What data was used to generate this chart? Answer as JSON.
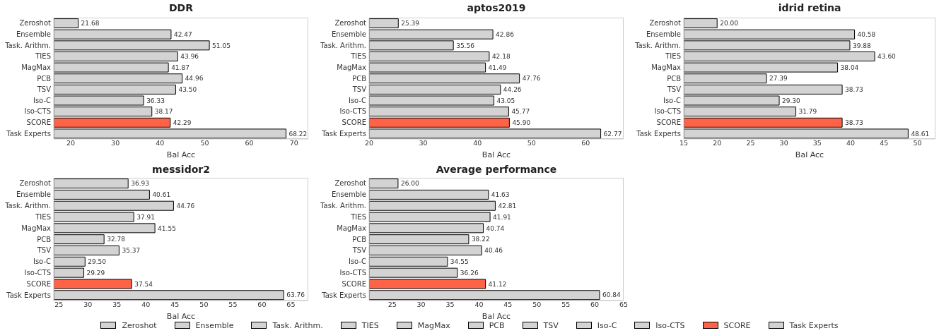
{
  "chart_data": [
    {
      "type": "bar",
      "orientation": "horizontal",
      "stacked": true,
      "title": "DDR",
      "xlabel": "Bal Acc",
      "categories": [
        "Zeroshot",
        "Ensemble",
        "Task. Arithm.",
        "TIES",
        "MagMax",
        "PCB",
        "TSV",
        "Iso-C",
        "Iso-CTS",
        "SCORE",
        "Task Experts"
      ],
      "xlim": [
        16.2,
        73.2
      ],
      "xticks": [
        20,
        30,
        40,
        50,
        60,
        70
      ],
      "series": [
        {
          "color": "#d3d3d3",
          "values": [
            21.68,
            null,
            null,
            null,
            null,
            null,
            null,
            null,
            null,
            null,
            null
          ],
          "value_labels": [
            "21.68",
            null,
            null,
            null,
            null,
            null,
            null,
            null,
            null,
            null,
            null
          ]
        },
        {
          "color": "#d3d3d3",
          "values": [
            null,
            42.47,
            null,
            null,
            null,
            null,
            null,
            null,
            null,
            null,
            null
          ],
          "value_labels": [
            null,
            "42.47",
            null,
            null,
            null,
            null,
            null,
            null,
            null,
            null,
            null
          ]
        },
        {
          "color": "#d3d3d3",
          "values": [
            null,
            null,
            51.05,
            null,
            null,
            null,
            null,
            null,
            null,
            null,
            null
          ],
          "value_labels": [
            null,
            null,
            "51.05",
            null,
            null,
            null,
            null,
            null,
            null,
            null,
            null
          ]
        },
        {
          "color": "#d3d3d3",
          "values": [
            null,
            null,
            null,
            43.96,
            null,
            null,
            null,
            null,
            null,
            null,
            null
          ],
          "value_labels": [
            null,
            null,
            null,
            "43.96",
            null,
            null,
            null,
            null,
            null,
            null,
            null
          ]
        },
        {
          "color": "#d3d3d3",
          "values": [
            null,
            null,
            null,
            null,
            41.87,
            null,
            null,
            null,
            null,
            null,
            null
          ],
          "value_labels": [
            null,
            null,
            null,
            null,
            "41.87",
            null,
            null,
            null,
            null,
            null,
            null
          ]
        },
        {
          "color": "#d3d3d3",
          "values": [
            null,
            null,
            null,
            null,
            null,
            44.96,
            null,
            null,
            null,
            null,
            null
          ],
          "value_labels": [
            null,
            null,
            null,
            null,
            null,
            "44.96",
            null,
            null,
            null,
            null,
            null
          ]
        },
        {
          "color": "#d3d3d3",
          "values": [
            null,
            null,
            null,
            null,
            null,
            null,
            43.5,
            null,
            null,
            null,
            null
          ],
          "value_labels": [
            null,
            null,
            null,
            null,
            null,
            null,
            "43.50",
            null,
            null,
            null,
            null
          ]
        },
        {
          "color": "#d3d3d3",
          "values": [
            null,
            null,
            null,
            null,
            null,
            null,
            null,
            36.33,
            null,
            null,
            null
          ],
          "value_labels": [
            null,
            null,
            null,
            null,
            null,
            null,
            null,
            "36.33",
            null,
            null,
            null
          ]
        },
        {
          "color": "#d3d3d3",
          "values": [
            null,
            null,
            null,
            null,
            null,
            null,
            null,
            null,
            38.17,
            null,
            null
          ],
          "value_labels": [
            null,
            null,
            null,
            null,
            null,
            null,
            null,
            null,
            "38.17",
            null,
            null
          ]
        },
        {
          "color": "#ff6347",
          "values": [
            null,
            null,
            null,
            null,
            null,
            null,
            null,
            null,
            null,
            42.29,
            null
          ],
          "value_labels": [
            null,
            null,
            null,
            null,
            null,
            null,
            null,
            null,
            null,
            "42.29",
            null
          ]
        },
        {
          "color": "#d3d3d3",
          "values": [
            null,
            null,
            null,
            null,
            null,
            null,
            null,
            null,
            null,
            null,
            68.22
          ],
          "value_labels": [
            null,
            null,
            null,
            null,
            null,
            null,
            null,
            null,
            null,
            null,
            "68.22"
          ]
        }
      ]
    },
    {
      "type": "bar",
      "orientation": "horizontal",
      "stacked": true,
      "title": "aptos2019",
      "xlabel": "Bal Acc",
      "categories": [
        "Zeroshot",
        "Ensemble",
        "Task. Arithm.",
        "TIES",
        "MagMax",
        "PCB",
        "TSV",
        "Iso-C",
        "Iso-CTS",
        "SCORE",
        "Task Experts"
      ],
      "xlim": [
        20,
        67
      ],
      "xticks": [
        20,
        30,
        40,
        50,
        60
      ],
      "series": [
        {
          "color": "#d3d3d3",
          "values": [
            25.39,
            null,
            null,
            null,
            null,
            null,
            null,
            null,
            null,
            null,
            null
          ],
          "value_labels": [
            "25.39",
            null,
            null,
            null,
            null,
            null,
            null,
            null,
            null,
            null,
            null
          ]
        },
        {
          "color": "#d3d3d3",
          "values": [
            null,
            42.86,
            null,
            null,
            null,
            null,
            null,
            null,
            null,
            null,
            null
          ],
          "value_labels": [
            null,
            "42.86",
            null,
            null,
            null,
            null,
            null,
            null,
            null,
            null,
            null
          ]
        },
        {
          "color": "#d3d3d3",
          "values": [
            null,
            null,
            35.56,
            null,
            null,
            null,
            null,
            null,
            null,
            null,
            null
          ],
          "value_labels": [
            null,
            null,
            "35.56",
            null,
            null,
            null,
            null,
            null,
            null,
            null,
            null
          ]
        },
        {
          "color": "#d3d3d3",
          "values": [
            null,
            null,
            null,
            42.18,
            null,
            null,
            null,
            null,
            null,
            null,
            null
          ],
          "value_labels": [
            null,
            null,
            null,
            "42.18",
            null,
            null,
            null,
            null,
            null,
            null,
            null
          ]
        },
        {
          "color": "#d3d3d3",
          "values": [
            null,
            null,
            null,
            null,
            41.49,
            null,
            null,
            null,
            null,
            null,
            null
          ],
          "value_labels": [
            null,
            null,
            null,
            null,
            "41.49",
            null,
            null,
            null,
            null,
            null,
            null
          ]
        },
        {
          "color": "#d3d3d3",
          "values": [
            null,
            null,
            null,
            null,
            null,
            47.76,
            null,
            null,
            null,
            null,
            null
          ],
          "value_labels": [
            null,
            null,
            null,
            null,
            null,
            "47.76",
            null,
            null,
            null,
            null,
            null
          ]
        },
        {
          "color": "#d3d3d3",
          "values": [
            null,
            null,
            null,
            null,
            null,
            null,
            44.26,
            null,
            null,
            null,
            null
          ],
          "value_labels": [
            null,
            null,
            null,
            null,
            null,
            null,
            "44.26",
            null,
            null,
            null,
            null
          ]
        },
        {
          "color": "#d3d3d3",
          "values": [
            null,
            null,
            null,
            null,
            null,
            null,
            null,
            43.05,
            null,
            null,
            null
          ],
          "value_labels": [
            null,
            null,
            null,
            null,
            null,
            null,
            null,
            "43.05",
            null,
            null,
            null
          ]
        },
        {
          "color": "#d3d3d3",
          "values": [
            null,
            null,
            null,
            null,
            null,
            null,
            null,
            null,
            45.77,
            null,
            null
          ],
          "value_labels": [
            null,
            null,
            null,
            null,
            null,
            null,
            null,
            null,
            "45.77",
            null,
            null
          ]
        },
        {
          "color": "#ff6347",
          "values": [
            null,
            null,
            null,
            null,
            null,
            null,
            null,
            null,
            null,
            45.9,
            null
          ],
          "value_labels": [
            null,
            null,
            null,
            null,
            null,
            null,
            null,
            null,
            null,
            "45.90",
            null
          ]
        },
        {
          "color": "#d3d3d3",
          "values": [
            null,
            null,
            null,
            null,
            null,
            null,
            null,
            null,
            null,
            null,
            62.77
          ],
          "value_labels": [
            null,
            null,
            null,
            null,
            null,
            null,
            null,
            null,
            null,
            null,
            "62.77"
          ]
        }
      ]
    },
    {
      "type": "bar",
      "orientation": "horizontal",
      "stacked": true,
      "title": "idrid retina",
      "xlabel": "Bal Acc",
      "categories": [
        "Zeroshot",
        "Ensemble",
        "Task. Arithm.",
        "TIES",
        "MagMax",
        "PCB",
        "TSV",
        "Iso-C",
        "Iso-CTS",
        "SCORE",
        "Task Experts"
      ],
      "xlim": [
        15,
        52.7
      ],
      "xticks": [
        15,
        20,
        25,
        30,
        35,
        40,
        45,
        50
      ],
      "series": [
        {
          "color": "#d3d3d3",
          "values": [
            20.0,
            null,
            null,
            null,
            null,
            null,
            null,
            null,
            null,
            null,
            null
          ],
          "value_labels": [
            "20.00",
            null,
            null,
            null,
            null,
            null,
            null,
            null,
            null,
            null,
            null
          ]
        },
        {
          "color": "#d3d3d3",
          "values": [
            null,
            40.58,
            null,
            null,
            null,
            null,
            null,
            null,
            null,
            null,
            null
          ],
          "value_labels": [
            null,
            "40.58",
            null,
            null,
            null,
            null,
            null,
            null,
            null,
            null,
            null
          ]
        },
        {
          "color": "#d3d3d3",
          "values": [
            null,
            null,
            39.88,
            null,
            null,
            null,
            null,
            null,
            null,
            null,
            null
          ],
          "value_labels": [
            null,
            null,
            "39.88",
            null,
            null,
            null,
            null,
            null,
            null,
            null,
            null
          ]
        },
        {
          "color": "#d3d3d3",
          "values": [
            null,
            null,
            null,
            43.6,
            null,
            null,
            null,
            null,
            null,
            null,
            null
          ],
          "value_labels": [
            null,
            null,
            null,
            "43.60",
            null,
            null,
            null,
            null,
            null,
            null,
            null
          ]
        },
        {
          "color": "#d3d3d3",
          "values": [
            null,
            null,
            null,
            null,
            38.04,
            null,
            null,
            null,
            null,
            null,
            null
          ],
          "value_labels": [
            null,
            null,
            null,
            null,
            "38.04",
            null,
            null,
            null,
            null,
            null,
            null
          ]
        },
        {
          "color": "#d3d3d3",
          "values": [
            null,
            null,
            null,
            null,
            null,
            27.39,
            null,
            null,
            null,
            null,
            null
          ],
          "value_labels": [
            null,
            null,
            null,
            null,
            null,
            "27.39",
            null,
            null,
            null,
            null,
            null
          ]
        },
        {
          "color": "#d3d3d3",
          "values": [
            null,
            null,
            null,
            null,
            null,
            null,
            38.73,
            null,
            null,
            null,
            null
          ],
          "value_labels": [
            null,
            null,
            null,
            null,
            null,
            null,
            "38.73",
            null,
            null,
            null,
            null
          ]
        },
        {
          "color": "#d3d3d3",
          "values": [
            null,
            null,
            null,
            null,
            null,
            null,
            null,
            29.3,
            null,
            null,
            null
          ],
          "value_labels": [
            null,
            null,
            null,
            null,
            null,
            null,
            null,
            "29.30",
            null,
            null,
            null
          ]
        },
        {
          "color": "#d3d3d3",
          "values": [
            null,
            null,
            null,
            null,
            null,
            null,
            null,
            null,
            31.79,
            null,
            null
          ],
          "value_labels": [
            null,
            null,
            null,
            null,
            null,
            null,
            null,
            null,
            "31.79",
            null,
            null
          ]
        },
        {
          "color": "#ff6347",
          "values": [
            null,
            null,
            null,
            null,
            null,
            null,
            null,
            null,
            null,
            38.73,
            null
          ],
          "value_labels": [
            null,
            null,
            null,
            null,
            null,
            null,
            null,
            null,
            null,
            "38.73",
            null
          ]
        },
        {
          "color": "#d3d3d3",
          "values": [
            null,
            null,
            null,
            null,
            null,
            null,
            null,
            null,
            null,
            null,
            48.61
          ],
          "value_labels": [
            null,
            null,
            null,
            null,
            null,
            null,
            null,
            null,
            null,
            null,
            "48.61"
          ]
        }
      ]
    },
    {
      "type": "bar",
      "orientation": "horizontal",
      "stacked": true,
      "title": "messidor2",
      "xlabel": "Bal Acc",
      "categories": [
        "Zeroshot",
        "Ensemble",
        "Task. Arithm.",
        "TIES",
        "MagMax",
        "PCB",
        "TSV",
        "Iso-C",
        "Iso-CTS",
        "SCORE",
        "Task Experts"
      ],
      "xlim": [
        24.1,
        68
      ],
      "xticks": [
        25,
        30,
        35,
        40,
        45,
        50,
        55,
        60,
        65
      ],
      "series": [
        {
          "color": "#d3d3d3",
          "values": [
            36.93,
            null,
            null,
            null,
            null,
            null,
            null,
            null,
            null,
            null,
            null
          ],
          "value_labels": [
            "36.93",
            null,
            null,
            null,
            null,
            null,
            null,
            null,
            null,
            null,
            null
          ]
        },
        {
          "color": "#d3d3d3",
          "values": [
            null,
            40.61,
            null,
            null,
            null,
            null,
            null,
            null,
            null,
            null,
            null
          ],
          "value_labels": [
            null,
            "40.61",
            null,
            null,
            null,
            null,
            null,
            null,
            null,
            null,
            null
          ]
        },
        {
          "color": "#d3d3d3",
          "values": [
            null,
            null,
            44.76,
            null,
            null,
            null,
            null,
            null,
            null,
            null,
            null
          ],
          "value_labels": [
            null,
            null,
            "44.76",
            null,
            null,
            null,
            null,
            null,
            null,
            null,
            null
          ]
        },
        {
          "color": "#d3d3d3",
          "values": [
            null,
            null,
            null,
            37.91,
            null,
            null,
            null,
            null,
            null,
            null,
            null
          ],
          "value_labels": [
            null,
            null,
            null,
            "37.91",
            null,
            null,
            null,
            null,
            null,
            null,
            null
          ]
        },
        {
          "color": "#d3d3d3",
          "values": [
            null,
            null,
            null,
            null,
            41.55,
            null,
            null,
            null,
            null,
            null,
            null
          ],
          "value_labels": [
            null,
            null,
            null,
            null,
            "41.55",
            null,
            null,
            null,
            null,
            null,
            null
          ]
        },
        {
          "color": "#d3d3d3",
          "values": [
            null,
            null,
            null,
            null,
            null,
            32.78,
            null,
            null,
            null,
            null,
            null
          ],
          "value_labels": [
            null,
            null,
            null,
            null,
            null,
            "32.78",
            null,
            null,
            null,
            null,
            null
          ]
        },
        {
          "color": "#d3d3d3",
          "values": [
            null,
            null,
            null,
            null,
            null,
            null,
            35.37,
            null,
            null,
            null,
            null
          ],
          "value_labels": [
            null,
            null,
            null,
            null,
            null,
            null,
            "35.37",
            null,
            null,
            null,
            null
          ]
        },
        {
          "color": "#d3d3d3",
          "values": [
            null,
            null,
            null,
            null,
            null,
            null,
            null,
            29.5,
            null,
            null,
            null
          ],
          "value_labels": [
            null,
            null,
            null,
            null,
            null,
            null,
            null,
            "29.50",
            null,
            null,
            null
          ]
        },
        {
          "color": "#d3d3d3",
          "values": [
            null,
            null,
            null,
            null,
            null,
            null,
            null,
            null,
            29.29,
            null,
            null
          ],
          "value_labels": [
            null,
            null,
            null,
            null,
            null,
            null,
            null,
            null,
            "29.29",
            null,
            null
          ]
        },
        {
          "color": "#ff6347",
          "values": [
            null,
            null,
            null,
            null,
            null,
            null,
            null,
            null,
            null,
            37.54,
            null
          ],
          "value_labels": [
            null,
            null,
            null,
            null,
            null,
            null,
            null,
            null,
            null,
            "37.54",
            null
          ]
        },
        {
          "color": "#d3d3d3",
          "values": [
            null,
            null,
            null,
            null,
            null,
            null,
            null,
            null,
            null,
            null,
            63.76
          ],
          "value_labels": [
            null,
            null,
            null,
            null,
            null,
            null,
            null,
            null,
            null,
            null,
            "63.76"
          ]
        }
      ]
    },
    {
      "type": "bar",
      "orientation": "horizontal",
      "stacked": true,
      "title": "Average performance",
      "xlabel": "Bal Acc",
      "categories": [
        "Zeroshot",
        "Ensemble",
        "Task. Arithm.",
        "TIES",
        "MagMax",
        "PCB",
        "TSV",
        "Iso-C",
        "Iso-CTS",
        "SCORE",
        "Task Experts"
      ],
      "xlim": [
        21,
        65
      ],
      "xticks": [
        25,
        30,
        35,
        40,
        45,
        50,
        55,
        60,
        65
      ],
      "legend": "bottom",
      "series": [
        {
          "name": "Zeroshot",
          "color": "#d3d3d3",
          "values": [
            26.0,
            null,
            null,
            null,
            null,
            null,
            null,
            null,
            null,
            null,
            null
          ],
          "value_labels": [
            "26.00",
            null,
            null,
            null,
            null,
            null,
            null,
            null,
            null,
            null,
            null
          ]
        },
        {
          "name": "Ensemble",
          "color": "#d3d3d3",
          "values": [
            null,
            41.63,
            null,
            null,
            null,
            null,
            null,
            null,
            null,
            null,
            null
          ],
          "value_labels": [
            null,
            "41.63",
            null,
            null,
            null,
            null,
            null,
            null,
            null,
            null,
            null
          ]
        },
        {
          "name": "Task. Arithm.",
          "color": "#d3d3d3",
          "values": [
            null,
            null,
            42.81,
            null,
            null,
            null,
            null,
            null,
            null,
            null,
            null
          ],
          "value_labels": [
            null,
            null,
            "42.81",
            null,
            null,
            null,
            null,
            null,
            null,
            null,
            null
          ]
        },
        {
          "name": "TIES",
          "color": "#d3d3d3",
          "values": [
            null,
            null,
            null,
            41.91,
            null,
            null,
            null,
            null,
            null,
            null,
            null
          ],
          "value_labels": [
            null,
            null,
            null,
            "41.91",
            null,
            null,
            null,
            null,
            null,
            null,
            null
          ]
        },
        {
          "name": "MagMax",
          "color": "#d3d3d3",
          "values": [
            null,
            null,
            null,
            null,
            40.74,
            null,
            null,
            null,
            null,
            null,
            null
          ],
          "value_labels": [
            null,
            null,
            null,
            null,
            "40.74",
            null,
            null,
            null,
            null,
            null,
            null
          ]
        },
        {
          "name": "PCB",
          "color": "#d3d3d3",
          "values": [
            null,
            null,
            null,
            null,
            null,
            38.22,
            null,
            null,
            null,
            null,
            null
          ],
          "value_labels": [
            null,
            null,
            null,
            null,
            null,
            "38.22",
            null,
            null,
            null,
            null,
            null
          ]
        },
        {
          "name": "TSV",
          "color": "#d3d3d3",
          "values": [
            null,
            null,
            null,
            null,
            null,
            null,
            40.46,
            null,
            null,
            null,
            null
          ],
          "value_labels": [
            null,
            null,
            null,
            null,
            null,
            null,
            "40.46",
            null,
            null,
            null,
            null
          ]
        },
        {
          "name": "Iso-C",
          "color": "#d3d3d3",
          "values": [
            null,
            null,
            null,
            null,
            null,
            null,
            null,
            34.55,
            null,
            null,
            null
          ],
          "value_labels": [
            null,
            null,
            null,
            null,
            null,
            null,
            null,
            "34.55",
            null,
            null,
            null
          ]
        },
        {
          "name": "Iso-CTS",
          "color": "#d3d3d3",
          "values": [
            null,
            null,
            null,
            null,
            null,
            null,
            null,
            null,
            36.26,
            null,
            null
          ],
          "value_labels": [
            null,
            null,
            null,
            null,
            null,
            null,
            null,
            null,
            "36.26",
            null,
            null
          ]
        },
        {
          "name": "SCORE",
          "color": "#ff6347",
          "values": [
            null,
            null,
            null,
            null,
            null,
            null,
            null,
            null,
            null,
            41.12,
            null
          ],
          "value_labels": [
            null,
            null,
            null,
            null,
            null,
            null,
            null,
            null,
            null,
            "41.12",
            null
          ]
        },
        {
          "name": "Task Experts",
          "color": "#d3d3d3",
          "values": [
            null,
            null,
            null,
            null,
            null,
            null,
            null,
            null,
            null,
            null,
            60.84
          ],
          "value_labels": [
            null,
            null,
            null,
            null,
            null,
            null,
            null,
            null,
            null,
            null,
            "60.84"
          ]
        }
      ]
    }
  ]
}
